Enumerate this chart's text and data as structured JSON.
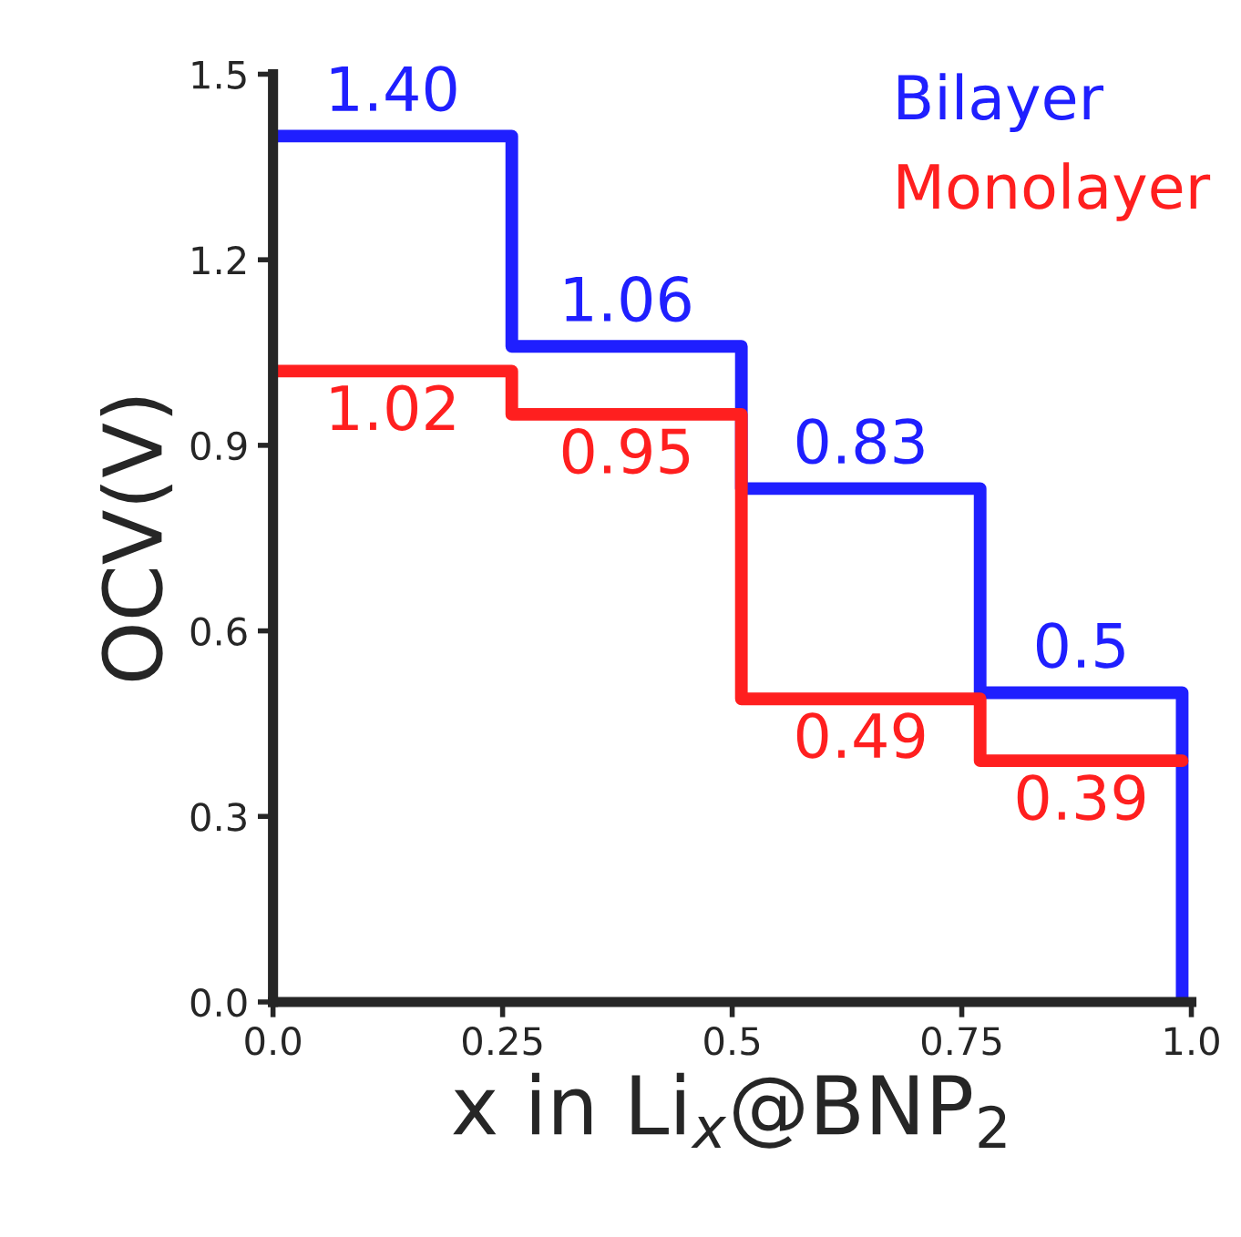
{
  "chart_data": {
    "type": "step",
    "xlabel": "x in Li$_{x}$@BNP$_{2}$",
    "ylabel": "OCV(V)",
    "xlim": [
      0,
      1.0
    ],
    "ylim": [
      0,
      1.5
    ],
    "xticks": [
      {
        "value": 0,
        "label": "0.0"
      },
      0.25,
      0.5,
      0.75,
      {
        "value": 1.0,
        "label": "1.0"
      }
    ],
    "yticks": [
      {
        "value": 0,
        "label": "0.0"
      },
      0.3,
      0.6,
      0.9,
      1.2,
      1.5
    ],
    "legend": "top right",
    "grid": false,
    "series": [
      {
        "name": "Bilayer",
        "color": "#1f1fff",
        "x": [
          0,
          0.26,
          0.51,
          0.77,
          0.99,
          0.99
        ],
        "values": [
          1.4,
          1.06,
          0.83,
          0.5,
          0.5,
          0
        ],
        "value_labels": [
          "1.40",
          "1.06",
          "0.83",
          "0.5",
          null,
          null
        ]
      },
      {
        "name": "Monolayer",
        "color": "#ff1f1f",
        "x": [
          0,
          0.26,
          0.51,
          0.77,
          0.99
        ],
        "values": [
          1.02,
          0.95,
          0.49,
          0.39,
          0.39
        ],
        "value_labels": [
          "1.02",
          "0.95",
          "0.49",
          "0.39",
          null
        ]
      }
    ]
  }
}
